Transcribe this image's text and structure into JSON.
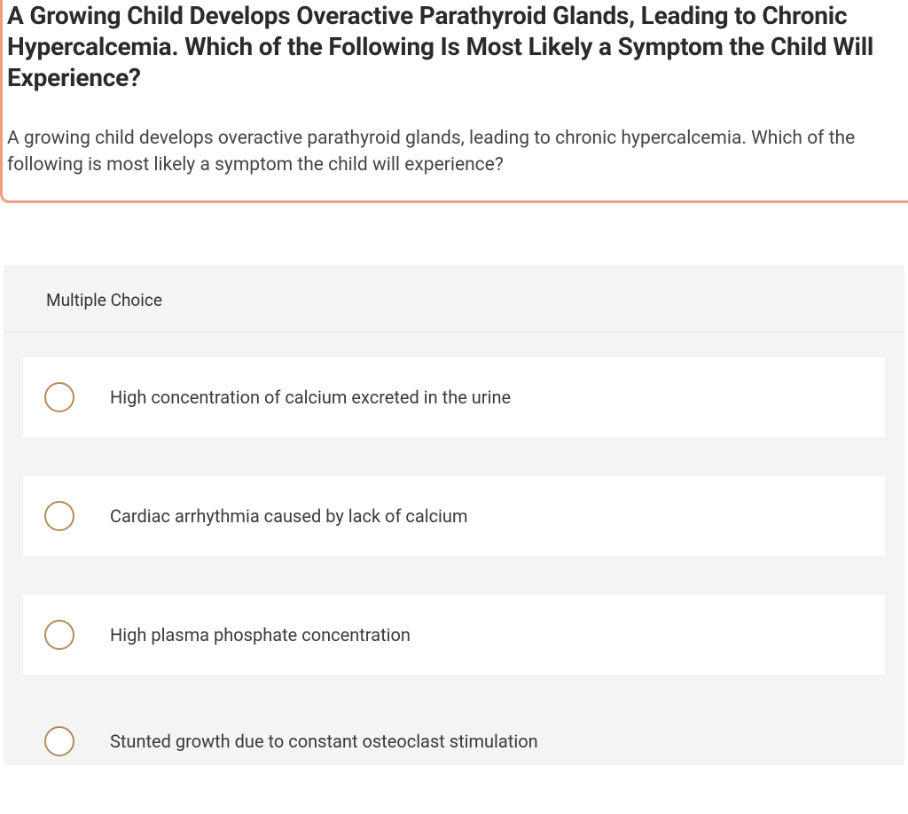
{
  "question": {
    "title": "A Growing Child Develops Overactive Parathyroid Glands, Leading to Chronic Hypercalcemia. Which of the Following Is Most Likely a Symptom the Child Will Experience?",
    "body": "A growing child develops overactive parathyroid glands, leading to chronic hypercalcemia. Which of the following is most likely a symptom the child will experience?"
  },
  "mc": {
    "header": "Multiple Choice",
    "options": [
      "High concentration of calcium excreted in the urine",
      "Cardiac arrhythmia caused by lack of calcium",
      "High plasma phosphate concentration",
      "Stunted growth due to constant osteoclast stimulation"
    ]
  },
  "colors": {
    "highlight_border": "#f0a080",
    "radio_border": "#b68b5a",
    "mc_background": "#f4f4f4",
    "option_background": "#ffffff",
    "title_color": "#2b2b2b",
    "body_color": "#444444"
  },
  "typography": {
    "title_fontsize": 28,
    "title_weight": 700,
    "body_fontsize": 21,
    "option_fontsize": 20,
    "mc_header_fontsize": 19
  }
}
